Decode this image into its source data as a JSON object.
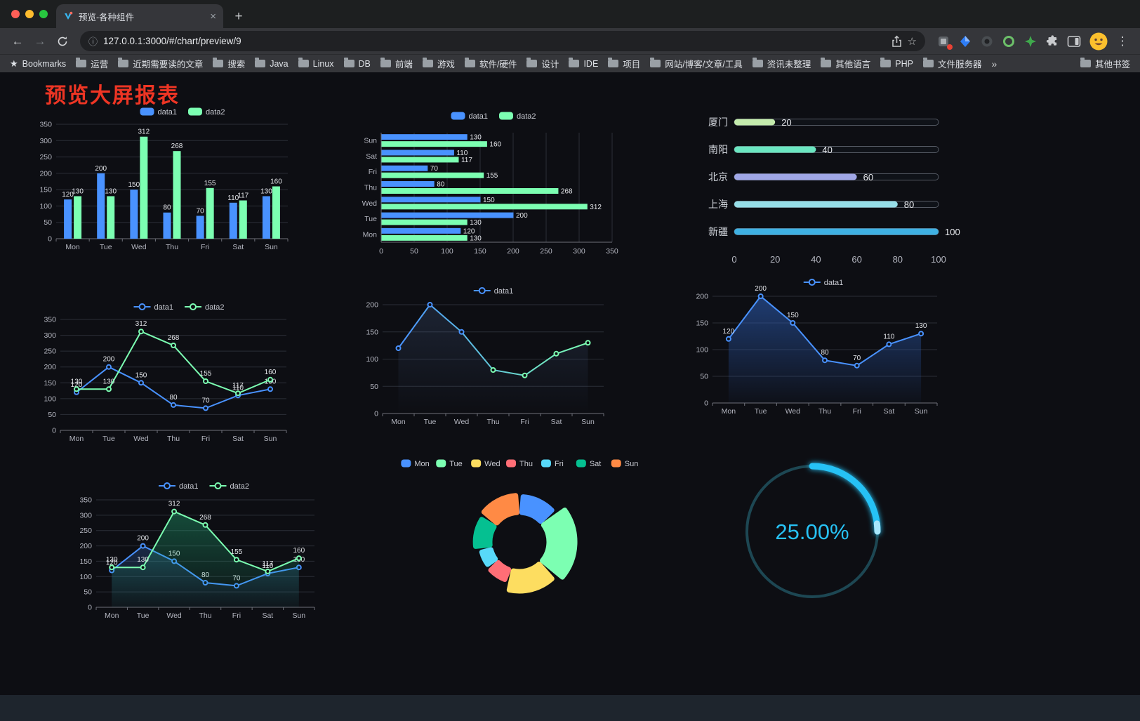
{
  "browser": {
    "tab_title": "预览-各种组件",
    "url": "127.0.0.1:3000/#/chart/preview/9"
  },
  "icons": {
    "back": "←",
    "forward": "→",
    "menu": "⋮",
    "info": "ⓘ",
    "star_outline": "☆",
    "star_filled": "★",
    "new_tab": "+",
    "tab_close": "×",
    "chevrons": "»"
  },
  "bookmarks": {
    "label": "Bookmarks",
    "items": [
      "运营",
      "近期需要读的文章",
      "搜索",
      "Java",
      "Linux",
      "DB",
      "前端",
      "游戏",
      "软件/硬件",
      "设计",
      "IDE",
      "项目",
      "网站/博客/文章/工具",
      "资讯未整理",
      "其他语言",
      "PHP",
      "文件服务器"
    ],
    "other_label": "其他书签"
  },
  "page": {
    "title": "预览大屏报表"
  },
  "chart_data": [
    {
      "id": "c1",
      "type": "bar",
      "title": "",
      "legend": [
        "data1",
        "data2"
      ],
      "legend_position": "top",
      "categories": [
        "Mon",
        "Tue",
        "Wed",
        "Thu",
        "Fri",
        "Sat",
        "Sun"
      ],
      "series": [
        {
          "name": "data1",
          "color": "#4992ff",
          "values": [
            120,
            200,
            150,
            80,
            70,
            110,
            130
          ],
          "labels": true
        },
        {
          "name": "data2",
          "color": "#7cffb2",
          "values": [
            130,
            130,
            312,
            268,
            155,
            117,
            160
          ],
          "labels": true
        }
      ],
      "ylim": [
        0,
        350
      ],
      "ystep": 50,
      "grid": true
    },
    {
      "id": "c2",
      "type": "hbar",
      "legend": [
        "data1",
        "data2"
      ],
      "legend_position": "top",
      "categories": [
        "Mon",
        "Tue",
        "Wed",
        "Thu",
        "Fri",
        "Sat",
        "Sun"
      ],
      "series": [
        {
          "name": "data1",
          "color": "#4992ff",
          "values": [
            120,
            200,
            150,
            80,
            70,
            110,
            130
          ],
          "labels": true
        },
        {
          "name": "data2",
          "color": "#7cffb2",
          "values": [
            130,
            130,
            312,
            268,
            155,
            117,
            160
          ],
          "labels": true
        }
      ],
      "xlim": [
        0,
        350
      ],
      "xstep": 50,
      "grid": true
    },
    {
      "id": "c3",
      "type": "progress",
      "max": 100,
      "ticks": [
        0,
        20,
        40,
        60,
        80,
        100
      ],
      "rows": [
        {
          "label": "厦门",
          "value": 20,
          "color": "#c4ebad"
        },
        {
          "label": "南阳",
          "value": 40,
          "color": "#6be6c1"
        },
        {
          "label": "北京",
          "value": 60,
          "color": "#a0a7e6"
        },
        {
          "label": "上海",
          "value": 80,
          "color": "#96dee8"
        },
        {
          "label": "新疆",
          "value": 100,
          "color": "#3fb1e3"
        }
      ]
    },
    {
      "id": "c4",
      "type": "line",
      "legend": [
        "data1",
        "data2"
      ],
      "legend_position": "top",
      "categories": [
        "Mon",
        "Tue",
        "Wed",
        "Thu",
        "Fri",
        "Sat",
        "Sun"
      ],
      "series": [
        {
          "name": "data1",
          "color": "#4992ff",
          "values": [
            120,
            200,
            150,
            80,
            70,
            110,
            130
          ],
          "labels": true
        },
        {
          "name": "data2",
          "color": "#7cffb2",
          "values": [
            130,
            130,
            312,
            268,
            155,
            117,
            160
          ],
          "labels": true
        }
      ],
      "ylim": [
        0,
        350
      ],
      "ystep": 50,
      "grid": true
    },
    {
      "id": "c5",
      "type": "line",
      "legend": [
        "data1"
      ],
      "legend_position": "top",
      "categories": [
        "Mon",
        "Tue",
        "Wed",
        "Thu",
        "Fri",
        "Sat",
        "Sun"
      ],
      "series": [
        {
          "name": "data1",
          "gradient": [
            "#4992ff",
            "#7cffb2"
          ],
          "values": [
            120,
            200,
            150,
            80,
            70,
            110,
            130
          ],
          "labels": false,
          "area": [
            "rgba(110,150,220,0.16)",
            "rgba(110,150,220,0)"
          ]
        }
      ],
      "ylim": [
        0,
        200
      ],
      "ystep": 50,
      "grid": true
    },
    {
      "id": "c6",
      "type": "line",
      "legend": [
        "data1"
      ],
      "legend_position": "top",
      "categories": [
        "Mon",
        "Tue",
        "Wed",
        "Thu",
        "Fri",
        "Sat",
        "Sun"
      ],
      "series": [
        {
          "name": "data1",
          "color": "#4992ff",
          "values": [
            120,
            200,
            150,
            80,
            70,
            110,
            130
          ],
          "labels": true,
          "area": [
            "rgba(47,99,193,0.55)",
            "rgba(47,99,193,0.03)"
          ]
        }
      ],
      "ylim": [
        0,
        200
      ],
      "ystep": 50,
      "grid": true
    },
    {
      "id": "c7",
      "type": "line",
      "legend": [
        "data1",
        "data2"
      ],
      "legend_position": "top",
      "categories": [
        "Mon",
        "Tue",
        "Wed",
        "Thu",
        "Fri",
        "Sat",
        "Sun"
      ],
      "series": [
        {
          "name": "data1",
          "color": "#4992ff",
          "values": [
            120,
            200,
            150,
            80,
            70,
            110,
            130
          ],
          "labels": true,
          "area": [
            "rgba(73,146,255,0.22)",
            "rgba(73,146,255,0.02)"
          ]
        },
        {
          "name": "data2",
          "color": "#7cffb2",
          "values": [
            130,
            130,
            312,
            268,
            155,
            117,
            160
          ],
          "labels": true,
          "area": [
            "rgba(34,190,130,0.35)",
            "rgba(34,190,130,0.03)"
          ]
        }
      ],
      "ylim": [
        0,
        350
      ],
      "ystep": 50,
      "grid": true
    },
    {
      "id": "c8",
      "type": "pie",
      "pie_style": "rose-doughnut",
      "legend_position": "top",
      "items": [
        {
          "name": "Mon",
          "value": 120,
          "color": "#4992ff"
        },
        {
          "name": "Tue",
          "value": 200,
          "color": "#7cffb2"
        },
        {
          "name": "Wed",
          "value": 150,
          "color": "#fddd60"
        },
        {
          "name": "Thu",
          "value": 80,
          "color": "#ff6e76"
        },
        {
          "name": "Fri",
          "value": 70,
          "color": "#58d9f9"
        },
        {
          "name": "Sat",
          "value": 110,
          "color": "#05c091"
        },
        {
          "name": "Sun",
          "value": 130,
          "color": "#ff8a45"
        }
      ]
    },
    {
      "id": "c9",
      "type": "gauge",
      "value": 25,
      "label": "25.00%",
      "color": "#27c2f5",
      "track": "#1d4753",
      "cap": "#a7e6fb"
    }
  ]
}
